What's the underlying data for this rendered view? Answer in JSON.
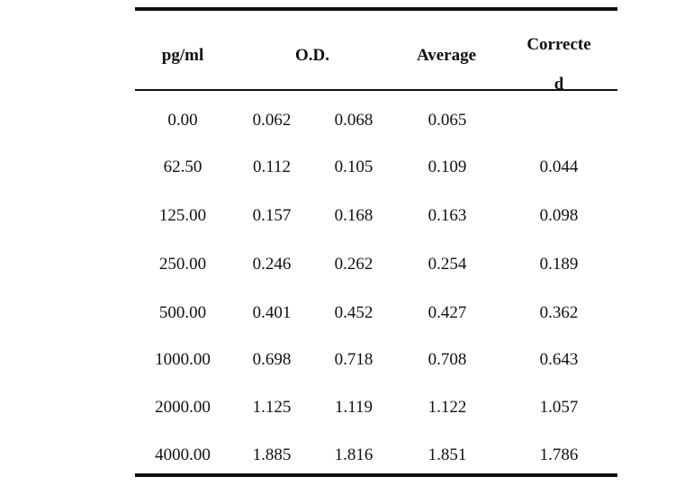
{
  "table": {
    "headers": {
      "conc": "pg/ml",
      "od": "O.D.",
      "average": "Average",
      "corrected_part1": "Correcte",
      "corrected_part2": "d"
    },
    "rows": [
      {
        "conc": "0.00",
        "od1": "0.062",
        "od2": "0.068",
        "avg": "0.065",
        "corr": ""
      },
      {
        "conc": "62.50",
        "od1": "0.112",
        "od2": "0.105",
        "avg": "0.109",
        "corr": "0.044"
      },
      {
        "conc": "125.00",
        "od1": "0.157",
        "od2": "0.168",
        "avg": "0.163",
        "corr": "0.098"
      },
      {
        "conc": "250.00",
        "od1": "0.246",
        "od2": "0.262",
        "avg": "0.254",
        "corr": "0.189"
      },
      {
        "conc": "500.00",
        "od1": "0.401",
        "od2": "0.452",
        "avg": "0.427",
        "corr": "0.362"
      },
      {
        "conc": "1000.00",
        "od1": "0.698",
        "od2": "0.718",
        "avg": "0.708",
        "corr": "0.643"
      },
      {
        "conc": "2000.00",
        "od1": "1.125",
        "od2": "1.119",
        "avg": "1.122",
        "corr": "1.057"
      },
      {
        "conc": "4000.00",
        "od1": "1.885",
        "od2": "1.816",
        "avg": "1.851",
        "corr": "1.786"
      }
    ]
  }
}
